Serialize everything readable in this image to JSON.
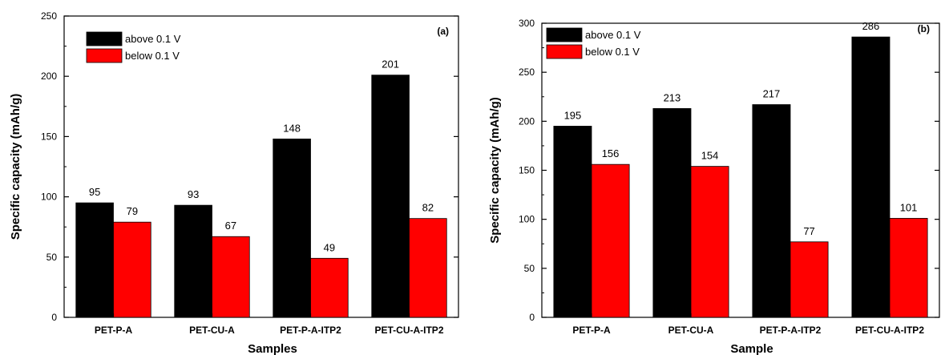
{
  "colors": {
    "series_above": "#000000",
    "series_below": "#ff0000",
    "axis": "#000000",
    "background": "#ffffff"
  },
  "chart_data": [
    {
      "type": "bar",
      "panel_label": "(a)",
      "categories": [
        "PET-P-A",
        "PET-CU-A",
        "PET-P-A-ITP2",
        "PET-CU-A-ITP2"
      ],
      "series": [
        {
          "name": "above 0.1 V",
          "values": [
            95,
            93,
            148,
            201
          ]
        },
        {
          "name": "below 0.1 V",
          "values": [
            79,
            67,
            49,
            82
          ]
        }
      ],
      "xlabel": "Samples",
      "ylabel": "Specific capacity (mAh/g)",
      "ylim": [
        0,
        250
      ],
      "yticks": [
        0,
        50,
        100,
        150,
        200,
        250
      ],
      "legend_position": "top-left",
      "grid": false,
      "data_labels": true
    },
    {
      "type": "bar",
      "panel_label": "(b)",
      "categories": [
        "PET-P-A",
        "PET-CU-A",
        "PET-P-A-ITP2",
        "PET-CU-A-ITP2"
      ],
      "series": [
        {
          "name": "above 0.1 V",
          "values": [
            195,
            213,
            217,
            286
          ]
        },
        {
          "name": "below 0.1 V",
          "values": [
            156,
            154,
            77,
            101
          ]
        }
      ],
      "xlabel": "Sample",
      "ylabel": "Specific capacity (mAh/g)",
      "ylim": [
        0,
        300
      ],
      "yticks": [
        0,
        50,
        100,
        150,
        200,
        250,
        300
      ],
      "legend_position": "top-left",
      "grid": false,
      "data_labels": true
    }
  ]
}
